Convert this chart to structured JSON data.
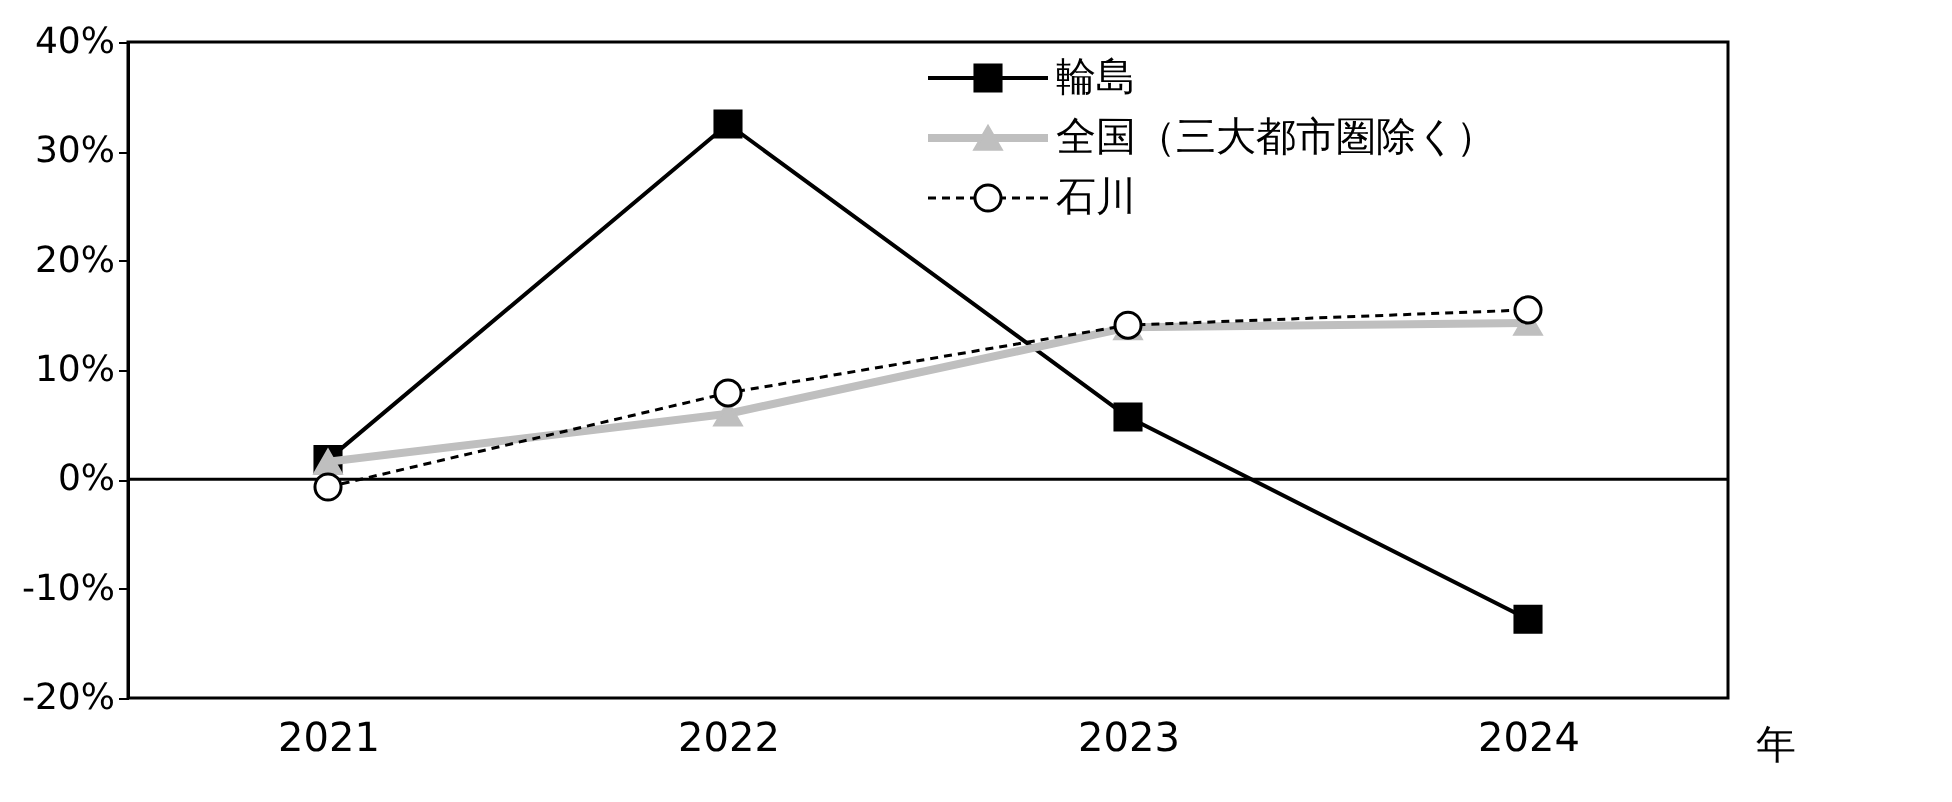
{
  "chart_data": {
    "type": "line",
    "categories": [
      "2021",
      "2022",
      "2023",
      "2024"
    ],
    "xlabel": "年",
    "series": [
      {
        "name": "輪島",
        "color": "#000000",
        "values": [
          1.8,
          32.5,
          5.7,
          -12.8
        ],
        "marker": "square",
        "line_style": "solid"
      },
      {
        "name": "全国（三大都市圏除く）",
        "color": "#bfbfbf",
        "values": [
          1.6,
          6.0,
          13.9,
          14.3
        ],
        "marker": "triangle",
        "line_style": "solid"
      },
      {
        "name": "石川",
        "color": "#000000",
        "values": [
          -0.7,
          7.9,
          14.1,
          15.5
        ],
        "marker": "circle",
        "line_style": "dashed"
      }
    ],
    "ylim": [
      -20,
      40
    ],
    "yticks": [
      {
        "value": -20,
        "label": "-20%"
      },
      {
        "value": -10,
        "label": "-10%"
      },
      {
        "value": 0,
        "label": "0%"
      },
      {
        "value": 10,
        "label": "10%"
      },
      {
        "value": 20,
        "label": "20%"
      },
      {
        "value": 30,
        "label": "30%"
      },
      {
        "value": 40,
        "label": "40%"
      }
    ],
    "ref_lines": [
      {
        "axis": "y",
        "value": 0,
        "color": "#000000"
      }
    ],
    "grid": false,
    "legend": "top right"
  }
}
